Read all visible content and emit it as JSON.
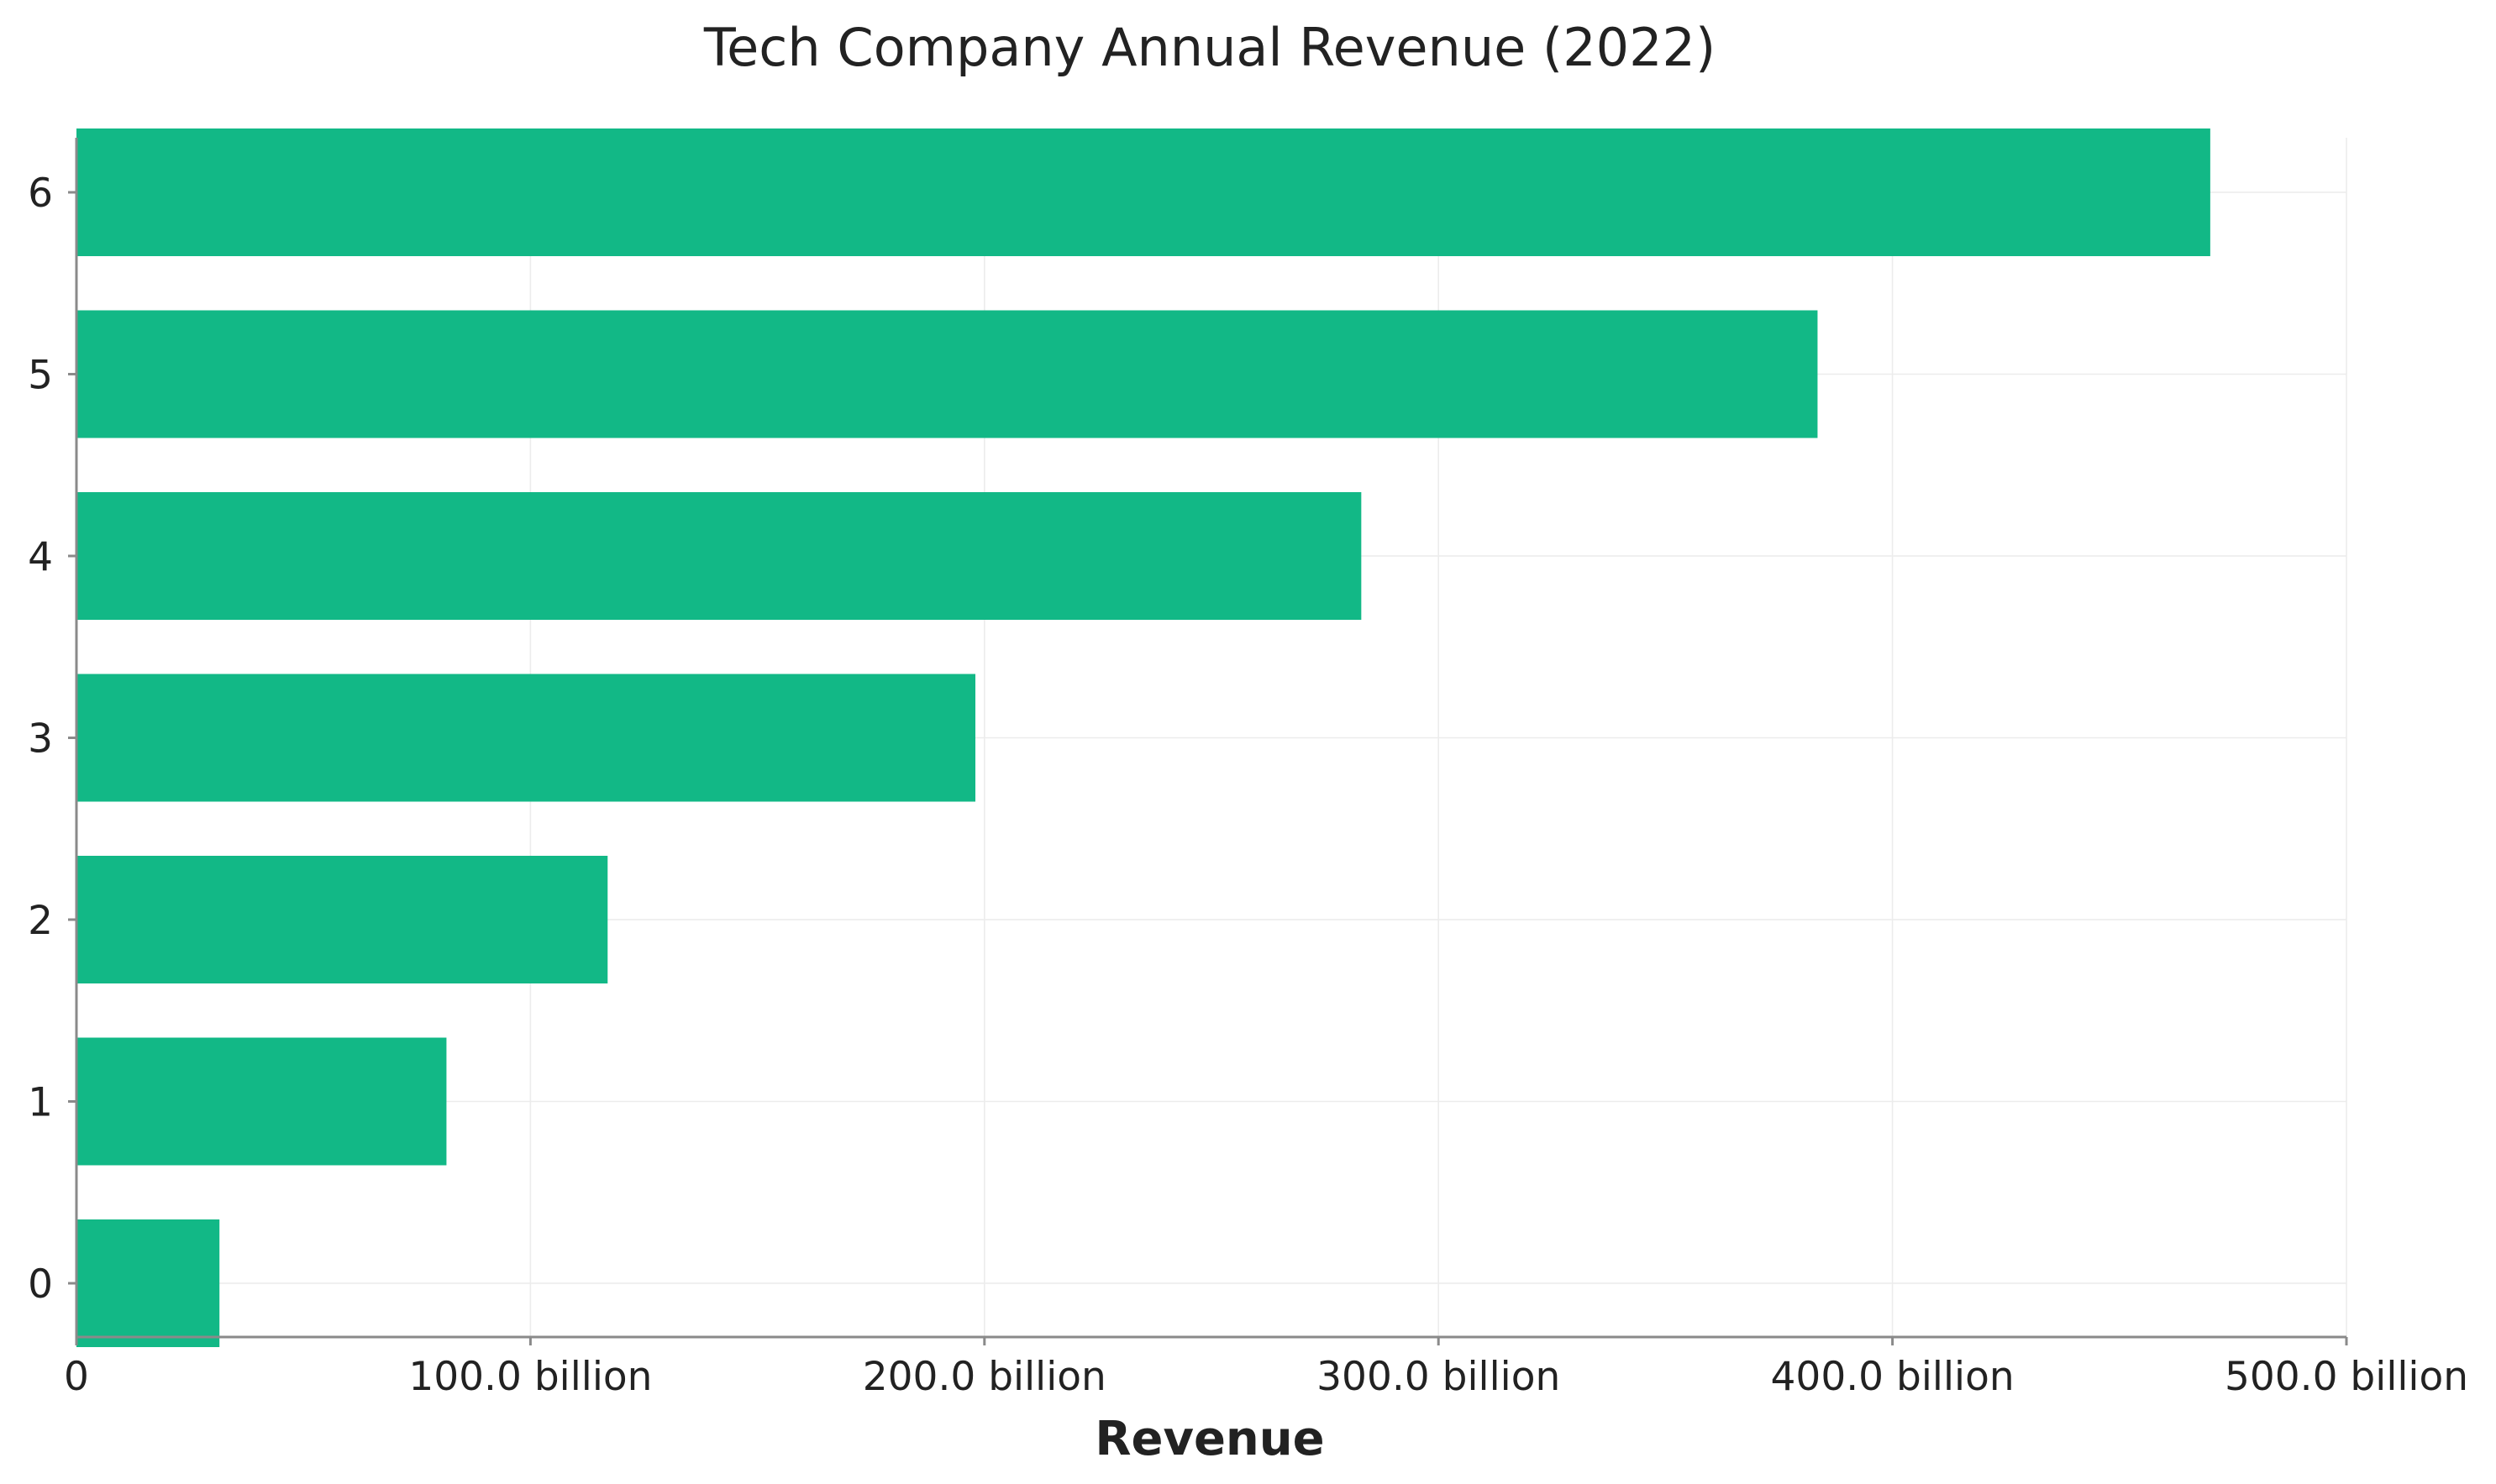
{
  "chart_data": {
    "type": "bar",
    "orientation": "horizontal",
    "title": "Tech Company Annual Revenue (2022)",
    "xlabel": "Revenue",
    "ylabel": "",
    "categories": [
      "0",
      "1",
      "2",
      "3",
      "4",
      "5",
      "6"
    ],
    "values": [
      31500000000,
      81500000000,
      117000000000,
      198000000000,
      283000000000,
      383500000000,
      470000000000
    ],
    "xlim": [
      0,
      500000000000
    ],
    "xticks": [
      0,
      100000000000,
      200000000000,
      300000000000,
      400000000000,
      500000000000
    ],
    "xtick_labels": [
      "0",
      "100.0 billion",
      "200.0 billion",
      "300.0 billion",
      "400.0 billion",
      "500.0 billion"
    ],
    "bar_color": "#12b886",
    "grid": true,
    "legend": "none"
  }
}
